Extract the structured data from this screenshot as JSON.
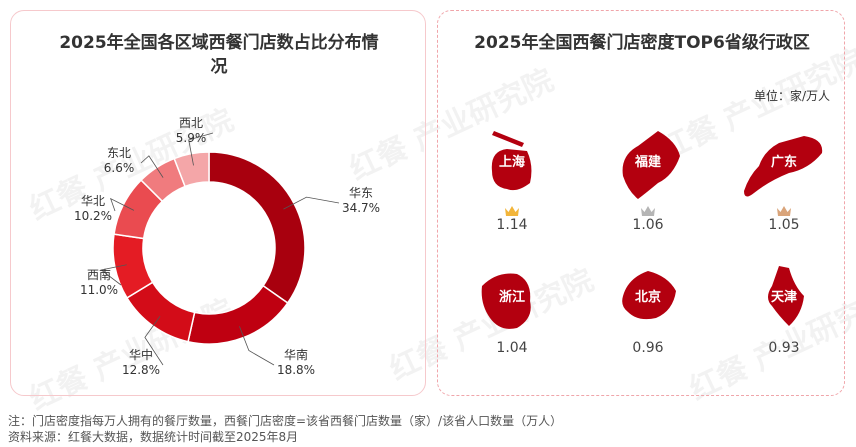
{
  "left_title": "2025年全国各区域西餐门店数占比分布情况",
  "right_title": "2025年全国西餐门店密度TOP6省级行政区",
  "unit": "单位：家/万人",
  "watermark": "红餐 产业研究院",
  "chart_data": {
    "type": "pie",
    "donut": true,
    "title": "2025年全国各区域西餐门店数占比分布情况",
    "categories": [
      "华东",
      "华南",
      "华中",
      "西南",
      "华北",
      "东北",
      "西北"
    ],
    "values": [
      34.7,
      18.8,
      12.8,
      11.0,
      10.2,
      6.6,
      5.9
    ],
    "labels": [
      "34.7%",
      "18.8%",
      "12.8%",
      "11.0%",
      "10.2%",
      "6.6%",
      "5.9%"
    ],
    "colors": [
      "#a8000e",
      "#bf0011",
      "#d30c18",
      "#e41c24",
      "#ea4b50",
      "#f07b7e",
      "#f4a6a8"
    ]
  },
  "provinces": [
    {
      "name": "上海",
      "value": "1.14",
      "crown": "gold",
      "crown_color": "#f2b53a"
    },
    {
      "name": "福建",
      "value": "1.06",
      "crown": "silver",
      "crown_color": "#b5b5b5"
    },
    {
      "name": "广东",
      "value": "1.05",
      "crown": "bronze",
      "crown_color": "#d9a47a"
    },
    {
      "name": "浙江",
      "value": "1.04"
    },
    {
      "name": "北京",
      "value": "0.96"
    },
    {
      "name": "天津",
      "value": "0.93"
    }
  ],
  "map_color": "#b3000f",
  "notes": [
    "注：门店密度指每万人拥有的餐厅数量，西餐门店密度=该省西餐门店数量（家）/该省人口数量（万人）",
    "资料来源：红餐大数据，数据统计时间截至2025年8月"
  ]
}
